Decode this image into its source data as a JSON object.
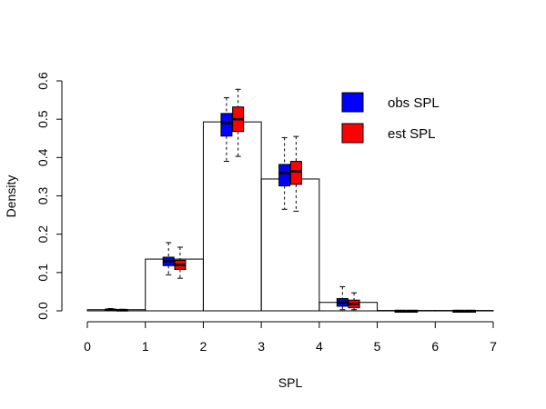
{
  "chart_data": {
    "type": "bar",
    "subtype": "histogram-with-boxplots",
    "xlabel": "SPL",
    "ylabel": "Density",
    "title": "",
    "xlim": [
      0,
      7
    ],
    "ylim": [
      0,
      0.6
    ],
    "x_ticks": [
      "0",
      "1",
      "2",
      "3",
      "4",
      "5",
      "6",
      "7"
    ],
    "y_ticks": [
      "0.0",
      "0.1",
      "0.2",
      "0.3",
      "0.4",
      "0.5",
      "0.6"
    ],
    "bins": [
      {
        "start": 0,
        "end": 1,
        "density": 0.003
      },
      {
        "start": 1,
        "end": 2,
        "density": 0.135
      },
      {
        "start": 2,
        "end": 3,
        "density": 0.493
      },
      {
        "start": 3,
        "end": 4,
        "density": 0.344
      },
      {
        "start": 4,
        "end": 5,
        "density": 0.022
      },
      {
        "start": 5,
        "end": 6,
        "density": 0.001
      },
      {
        "start": 6,
        "end": 7,
        "density": 0.001
      }
    ],
    "series": [
      {
        "name": "obs SPL",
        "color": "#0000ff",
        "boxes": [
          {
            "x": 0.4,
            "lo": 0.001,
            "q1": 0.002,
            "med": 0.003,
            "q3": 0.004,
            "hi": 0.006
          },
          {
            "x": 1.4,
            "lo": 0.094,
            "q1": 0.118,
            "med": 0.13,
            "q3": 0.14,
            "hi": 0.178
          },
          {
            "x": 2.4,
            "lo": 0.39,
            "q1": 0.456,
            "med": 0.49,
            "q3": 0.515,
            "hi": 0.556
          },
          {
            "x": 3.4,
            "lo": 0.265,
            "q1": 0.326,
            "med": 0.36,
            "q3": 0.382,
            "hi": 0.452
          },
          {
            "x": 4.4,
            "lo": 0.003,
            "q1": 0.012,
            "med": 0.022,
            "q3": 0.032,
            "hi": 0.063
          },
          {
            "x": 5.4,
            "lo": 0.0,
            "q1": 0.0,
            "med": 0.0,
            "q3": 0.0,
            "hi": 0.001
          },
          {
            "x": 6.4,
            "lo": 0.0,
            "q1": 0.0,
            "med": 0.0,
            "q3": 0.0,
            "hi": 0.001
          }
        ]
      },
      {
        "name": "est SPL",
        "color": "#ff0000",
        "boxes": [
          {
            "x": 0.6,
            "lo": 0.0,
            "q1": 0.001,
            "med": 0.002,
            "q3": 0.003,
            "hi": 0.004
          },
          {
            "x": 1.6,
            "lo": 0.085,
            "q1": 0.108,
            "med": 0.12,
            "q3": 0.132,
            "hi": 0.166
          },
          {
            "x": 2.6,
            "lo": 0.403,
            "q1": 0.468,
            "med": 0.5,
            "q3": 0.532,
            "hi": 0.578
          },
          {
            "x": 3.6,
            "lo": 0.26,
            "q1": 0.33,
            "med": 0.364,
            "q3": 0.39,
            "hi": 0.455
          },
          {
            "x": 4.6,
            "lo": 0.003,
            "q1": 0.008,
            "med": 0.018,
            "q3": 0.028,
            "hi": 0.047
          },
          {
            "x": 5.6,
            "lo": 0.0,
            "q1": 0.0,
            "med": 0.0,
            "q3": 0.0,
            "hi": 0.001
          },
          {
            "x": 6.6,
            "lo": 0.0,
            "q1": 0.0,
            "med": 0.0,
            "q3": 0.0,
            "hi": 0.001
          }
        ]
      }
    ],
    "legend": {
      "position": "top-right",
      "entries": [
        {
          "label": "obs SPL",
          "color": "#0000ff"
        },
        {
          "label": "est SPL",
          "color": "#ff0000"
        }
      ]
    }
  }
}
